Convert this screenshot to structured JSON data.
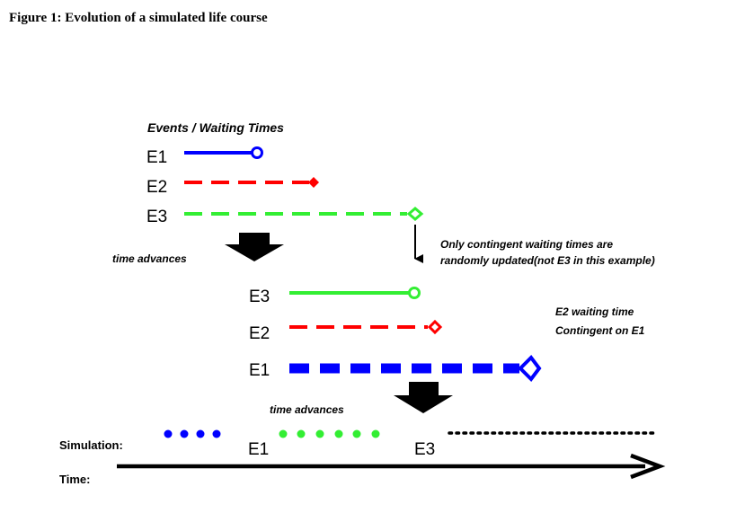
{
  "title": "Figure 1: Evolution of a simulated life course",
  "header_label": "Events / Waiting Times",
  "stage1": {
    "rows": [
      {
        "label": "E1",
        "color": "#0000ff",
        "style": "solid",
        "marker": "circle"
      },
      {
        "label": "E2",
        "color": "#ff0000",
        "style": "dashed",
        "marker": "diamond"
      },
      {
        "label": "E3",
        "color": "#33ee33",
        "style": "dashed",
        "marker": "open-diamond"
      }
    ]
  },
  "time_advances_1": "time advances",
  "note_contingent_line1": "Only contingent waiting times are",
  "note_contingent_line2": "randomly updated(not E3 in this example)",
  "stage2": {
    "rows": [
      {
        "label": "E3",
        "color": "#33ee33",
        "style": "solid",
        "marker": "circle"
      },
      {
        "label": "E2",
        "color": "#ff0000",
        "style": "dashed",
        "marker": "open-diamond"
      },
      {
        "label": "E1",
        "color": "#0000ff",
        "style": "dashed-thick",
        "marker": "open-diamond"
      }
    ]
  },
  "note_e2_line1": "E2 waiting time",
  "note_e2_line2": "Contingent on E1",
  "time_advances_2": "time advances",
  "simulation_label": "Simulation:",
  "time_label": "Time:",
  "timeline_events": [
    "E1",
    "E3"
  ],
  "colors": {
    "blue": "#0000ff",
    "red": "#ff0000",
    "green": "#33ee33",
    "black": "#000000"
  }
}
